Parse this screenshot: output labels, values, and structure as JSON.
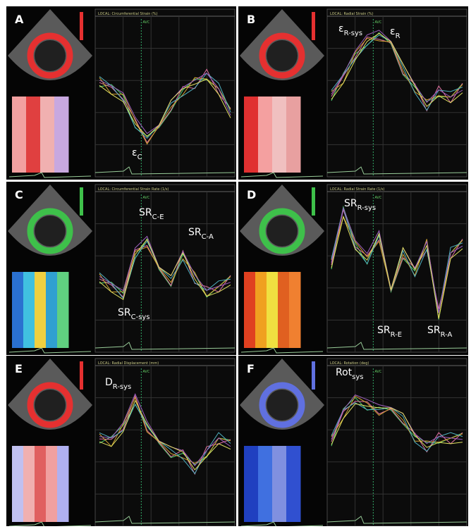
{
  "panels": [
    {
      "letter": "A",
      "title": "LOCAL: Circumferential Strain (%)",
      "marker": "AVC",
      "annotations": [
        {
          "main": "ε",
          "sub": "C"
        }
      ]
    },
    {
      "letter": "B",
      "title": "LOCAL: Radial Strain (%)",
      "marker": "AVC",
      "annotations": [
        {
          "main": "ε",
          "sub": "R-sys"
        },
        {
          "main": "ε",
          "sub": "R"
        }
      ]
    },
    {
      "letter": "C",
      "title": "LOCAL: Circumferential Strain Rate (1/s)",
      "marker": "AVC",
      "annotations": [
        {
          "main": "SR",
          "sub": "C-E"
        },
        {
          "main": "SR",
          "sub": "C-A"
        },
        {
          "main": "SR",
          "sub": "C-sys"
        }
      ]
    },
    {
      "letter": "D",
      "title": "LOCAL: Radial Strain Rate (1/s)",
      "marker": "AVC",
      "annotations": [
        {
          "main": "SR",
          "sub": "R-sys"
        },
        {
          "main": "SR",
          "sub": "R-E"
        },
        {
          "main": "SR",
          "sub": "R-A"
        }
      ]
    },
    {
      "letter": "E",
      "title": "LOCAL: Radial Displacement (mm)",
      "marker": "AVC",
      "annotations": [
        {
          "main": "D",
          "sub": "R-sys"
        }
      ]
    },
    {
      "letter": "F",
      "title": "LOCAL: Rotation (deg)",
      "marker": "AVC",
      "annotations": [
        {
          "main": "Rot",
          "sub": "sys"
        }
      ]
    }
  ]
}
